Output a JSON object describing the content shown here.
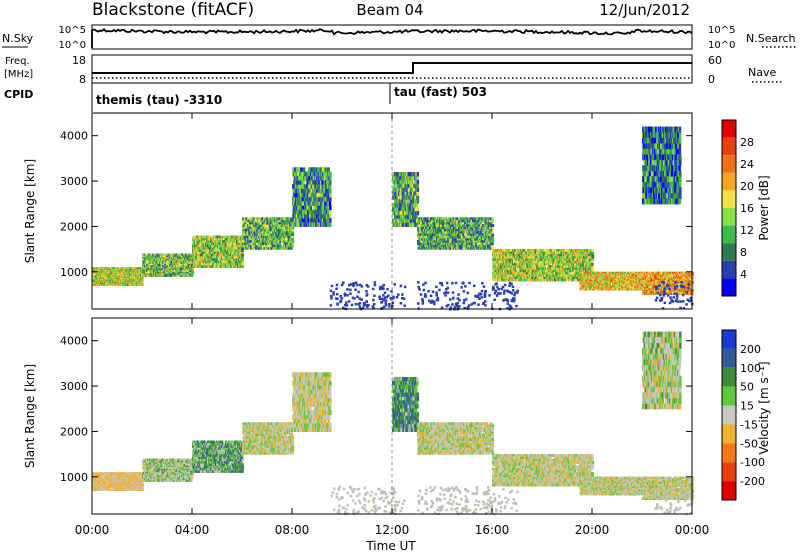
{
  "header": {
    "station": "Blackstone (fitACF)",
    "beam": "Beam 04",
    "date": "12/Jun/2012"
  },
  "top_panel": {
    "left_label": "N.Sky",
    "right_label": "N.Search",
    "left_ticks": [
      "10^5",
      "10^0"
    ],
    "right_ticks": [
      "10^5",
      "10^0"
    ]
  },
  "freq_panel": {
    "label_line1": "Freq.",
    "label_line2": "[MHz]",
    "cpid_label": "CPID",
    "left_ticks": [
      "18",
      "8"
    ],
    "right_label": "Nave",
    "right_ticks": [
      "60",
      "0"
    ],
    "cpid_entries": [
      {
        "text": "themis (tau) -3310",
        "start_hour": 0
      },
      {
        "text": "tau (fast) 503",
        "start_hour": 12
      }
    ]
  },
  "colors": {
    "power": [
      "#0000ff",
      "#2a3fb0",
      "#2e7a4e",
      "#3dba4a",
      "#8be04a",
      "#f5e04a",
      "#f5a623",
      "#f07018",
      "#e84010",
      "#e00000"
    ],
    "velocity": [
      "#1a3bd0",
      "#2f5a9a",
      "#3f8a3a",
      "#5cc83a",
      "#c8c8c0",
      "#f0b030",
      "#f07a18",
      "#e84010",
      "#e00000"
    ],
    "ground": "#bfbfb8"
  },
  "chart_data": [
    {
      "type": "heatmap",
      "name": "power",
      "xlabel": "",
      "ylabel": "Slant Range [km]",
      "xlim": [
        0,
        24
      ],
      "ylim": [
        180,
        4500
      ],
      "yticks": [
        "1000",
        "2000",
        "3000",
        "4000"
      ],
      "colorbar_label": "Power [dB]",
      "colorbar_ticks": [
        "4",
        "8",
        "12",
        "16",
        "20",
        "24",
        "28"
      ],
      "bands": [
        {
          "h0": 0.0,
          "h1": 2.0,
          "r0": 700,
          "r1": 1100,
          "power": 17
        },
        {
          "h0": 2.0,
          "h1": 4.0,
          "r0": 900,
          "r1": 1400,
          "power": 14
        },
        {
          "h0": 4.0,
          "h1": 6.0,
          "r0": 1100,
          "r1": 1800,
          "power": 15
        },
        {
          "h0": 6.0,
          "h1": 8.0,
          "r0": 1500,
          "r1": 2200,
          "power": 13
        },
        {
          "h0": 8.0,
          "h1": 9.5,
          "r0": 2000,
          "r1": 3300,
          "power": 11
        },
        {
          "h0": 12.0,
          "h1": 13.0,
          "r0": 2000,
          "r1": 3200,
          "power": 12
        },
        {
          "h0": 13.0,
          "h1": 16.0,
          "r0": 1500,
          "r1": 2200,
          "power": 12
        },
        {
          "h0": 16.0,
          "h1": 20.0,
          "r0": 800,
          "r1": 1500,
          "power": 16
        },
        {
          "h0": 19.5,
          "h1": 22.0,
          "r0": 600,
          "r1": 1000,
          "power": 20
        },
        {
          "h0": 22.0,
          "h1": 24.0,
          "r0": 500,
          "r1": 1000,
          "power": 22
        },
        {
          "h0": 22.0,
          "h1": 23.5,
          "r0": 2500,
          "r1": 4200,
          "power": 9
        }
      ]
    },
    {
      "type": "heatmap",
      "name": "velocity",
      "xlabel": "Time UT",
      "ylabel": "Slant Range [km]",
      "xlim": [
        0,
        24
      ],
      "ylim": [
        180,
        4500
      ],
      "xticks": [
        "00:00",
        "04:00",
        "08:00",
        "12:00",
        "16:00",
        "20:00",
        "00:00"
      ],
      "yticks": [
        "1000",
        "2000",
        "3000",
        "4000"
      ],
      "colorbar_label": "Velocity [m s⁻¹]",
      "colorbar_ticks": [
        "200",
        "100",
        "50",
        "15",
        "-15",
        "-50",
        "-100",
        "-200"
      ],
      "bands": [
        {
          "h0": 0.0,
          "h1": 2.0,
          "r0": 700,
          "r1": 1100,
          "velocity": -20
        },
        {
          "h0": 2.0,
          "h1": 4.0,
          "r0": 900,
          "r1": 1400,
          "velocity": 10
        },
        {
          "h0": 4.0,
          "h1": 6.0,
          "r0": 1100,
          "r1": 1800,
          "velocity": 30
        },
        {
          "h0": 6.0,
          "h1": 8.0,
          "r0": 1500,
          "r1": 2200,
          "velocity": 0
        },
        {
          "h0": 8.0,
          "h1": 9.5,
          "r0": 2000,
          "r1": 3300,
          "velocity": 0
        },
        {
          "h0": 12.0,
          "h1": 13.0,
          "r0": 2000,
          "r1": 3200,
          "velocity": 40
        },
        {
          "h0": 13.0,
          "h1": 16.0,
          "r0": 1500,
          "r1": 2200,
          "velocity": 0
        },
        {
          "h0": 16.0,
          "h1": 20.0,
          "r0": 800,
          "r1": 1500,
          "velocity": 0
        },
        {
          "h0": 19.5,
          "h1": 22.0,
          "r0": 600,
          "r1": 1000,
          "velocity": 0
        },
        {
          "h0": 22.0,
          "h1": 24.0,
          "r0": 500,
          "r1": 1000,
          "velocity": 0
        },
        {
          "h0": 22.0,
          "h1": 23.5,
          "r0": 2500,
          "r1": 4200,
          "velocity": 5
        }
      ]
    }
  ]
}
